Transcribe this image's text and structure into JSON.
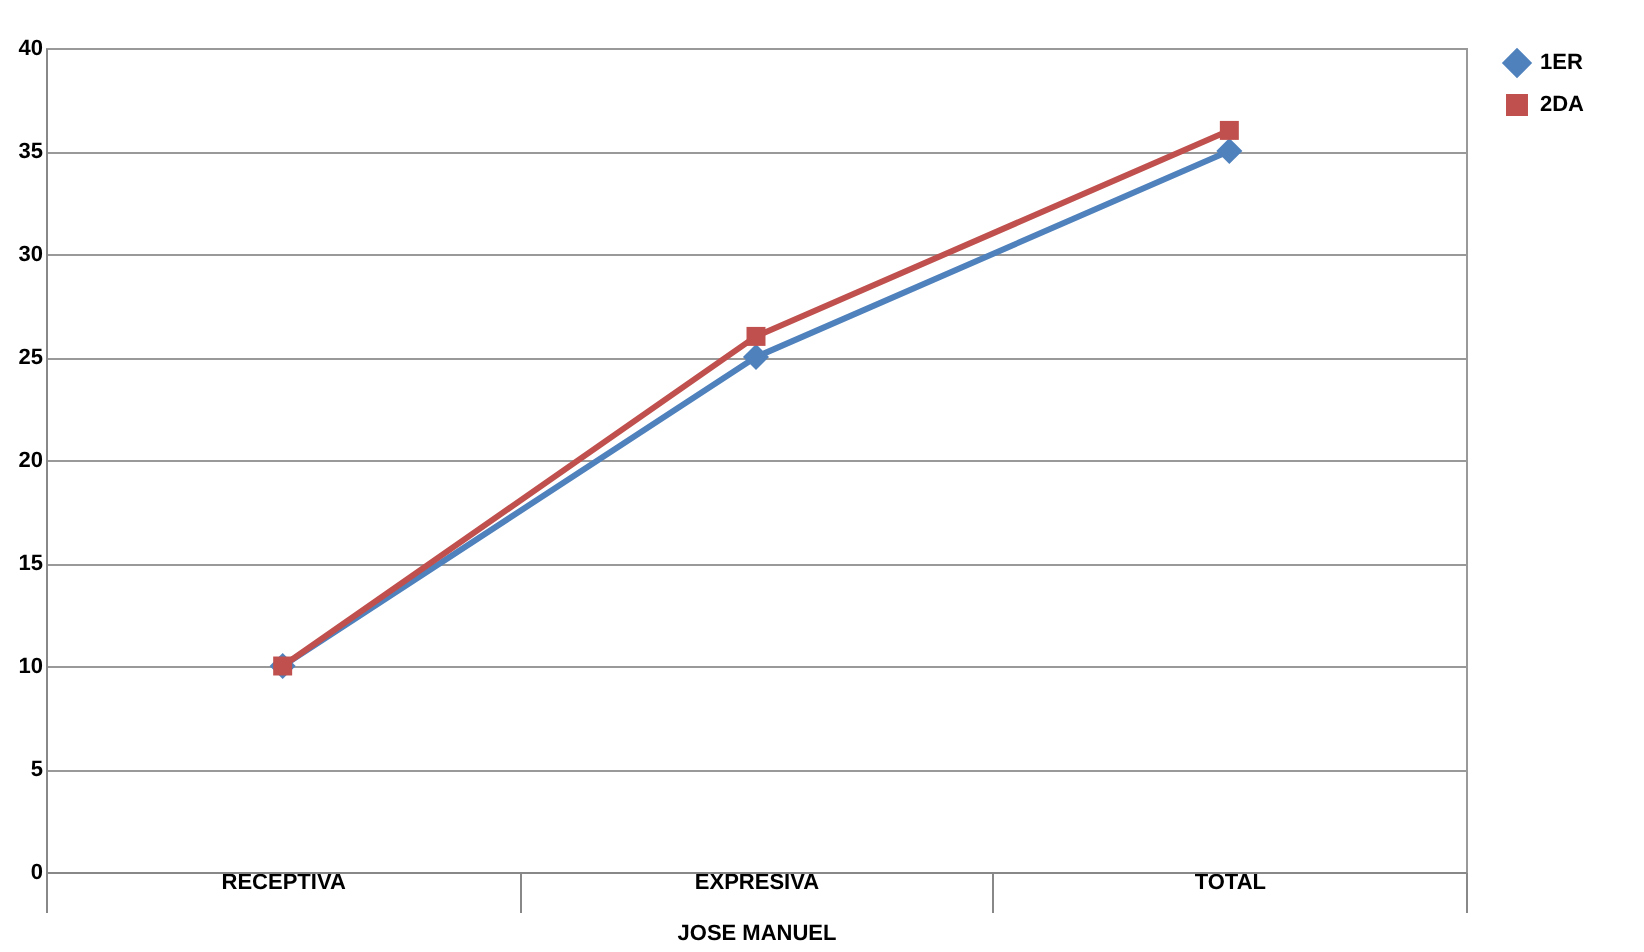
{
  "chart_data": {
    "type": "line",
    "xlabel": "JOSE MANUEL",
    "categories": [
      "RECEPTIVA",
      "EXPRESIVA",
      "TOTAL"
    ],
    "series": [
      {
        "name": "1ER",
        "color": "#4f81bd",
        "marker": "diamond",
        "values": [
          10,
          25,
          35
        ]
      },
      {
        "name": "2DA",
        "color": "#c0504d",
        "marker": "square",
        "values": [
          10,
          26,
          36
        ]
      }
    ],
    "ylim": [
      0,
      40
    ],
    "yticks": [
      0,
      5,
      10,
      15,
      20,
      25,
      30,
      35,
      40
    ],
    "grid": "y",
    "legend": "right",
    "line_style": "solid"
  }
}
